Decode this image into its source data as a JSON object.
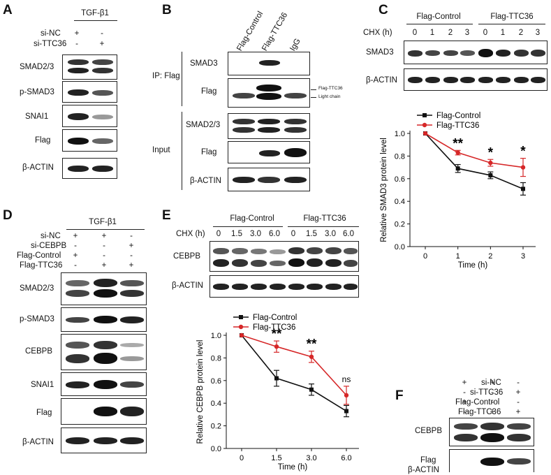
{
  "panels": {
    "A": {
      "label": "A",
      "header": "TGF-β1",
      "conditions": [
        {
          "name": "si-NC",
          "marks": [
            "+",
            "-"
          ]
        },
        {
          "name": "si-TTC36",
          "marks": [
            "-",
            "+"
          ]
        }
      ],
      "blots": [
        "SMAD2/3",
        "p-SMAD3",
        "SNAI1",
        "Flag",
        "β-ACTIN"
      ]
    },
    "B": {
      "label": "B",
      "lanes": [
        "Flag-Control",
        "Flag-TTC36",
        "IgG"
      ],
      "ip_label": "IP: Flag",
      "input_label": "Input",
      "blots": [
        "SMAD3",
        "Flag",
        "SMAD2/3",
        "Flag",
        "β-ACTIN"
      ],
      "annotations": [
        "Flag-TTC36",
        "Light chain"
      ]
    },
    "C": {
      "label": "C",
      "groups": [
        "Flag-Control",
        "Flag-TTC36"
      ],
      "chx_label": "CHX (h)",
      "timepoints": [
        "0",
        "1",
        "2",
        "3",
        "0",
        "1",
        "2",
        "3"
      ],
      "blots": [
        "SMAD3",
        "β-ACTIN"
      ]
    },
    "D": {
      "label": "D",
      "header": "TGF-β1",
      "conditions": [
        {
          "name": "si-NC",
          "marks": [
            "+",
            "+",
            "-"
          ]
        },
        {
          "name": "si-CEBPB",
          "marks": [
            "-",
            "-",
            "+"
          ]
        },
        {
          "name": "Flag-Control",
          "marks": [
            "+",
            "-",
            "-"
          ]
        },
        {
          "name": "Flag-TTC36",
          "marks": [
            "-",
            "+",
            "+"
          ]
        }
      ],
      "blots": [
        "SMAD2/3",
        "p-SMAD3",
        "CEBPB",
        "SNAI1",
        "Flag",
        "β-ACTIN"
      ]
    },
    "E": {
      "label": "E",
      "groups": [
        "Flag-Control",
        "Flag-TTC36"
      ],
      "chx_label": "CHX (h)",
      "timepoints": [
        "0",
        "1.5",
        "3.0",
        "6.0",
        "0",
        "1.5",
        "3.0",
        "6.0"
      ],
      "blots": [
        "CEBPB",
        "β-ACTIN"
      ]
    },
    "F": {
      "label": "F",
      "conditions": [
        {
          "name": "si-NC",
          "marks": [
            "+",
            "+",
            "-"
          ]
        },
        {
          "name": "si-TTC36",
          "marks": [
            "-",
            "-",
            "+"
          ]
        },
        {
          "name": "Flag-Control",
          "marks": [
            "+",
            "-",
            "-"
          ]
        },
        {
          "name": "Flag-TTC36",
          "marks": [
            "-",
            "+",
            "+"
          ]
        }
      ],
      "blots": [
        "CEBPB",
        "Flag",
        "β-ACTIN"
      ]
    }
  },
  "colors": {
    "control": "#111111",
    "ttc36": "#d62728"
  },
  "chart_data": [
    {
      "id": "C",
      "type": "line",
      "ylabel": "Relative SMAD3 protein level",
      "xlabel": "Time (h)",
      "x": [
        "0",
        "1",
        "2",
        "3"
      ],
      "ylim": [
        0,
        1.0
      ],
      "yticks": [
        "0.0",
        "0.2",
        "0.4",
        "0.6",
        "0.8",
        "1.0"
      ],
      "series": [
        {
          "name": "Flag-Control",
          "values": [
            1.0,
            0.69,
            0.63,
            0.51
          ],
          "errors": [
            0,
            0.035,
            0.03,
            0.055
          ]
        },
        {
          "name": "Flag-TTC36",
          "values": [
            1.0,
            0.83,
            0.74,
            0.7
          ],
          "errors": [
            0,
            0.02,
            0.03,
            0.08
          ]
        }
      ],
      "significance": [
        "",
        "**",
        "*",
        "*"
      ],
      "legend_position": "top-left"
    },
    {
      "id": "E",
      "type": "line",
      "ylabel": "Relative CEBPB protein level",
      "xlabel": "Time (h)",
      "x": [
        "0",
        "1.5",
        "3.0",
        "6.0"
      ],
      "ylim": [
        0,
        1.0
      ],
      "yticks": [
        "0.0",
        "0.2",
        "0.4",
        "0.6",
        "0.8",
        "1.0"
      ],
      "series": [
        {
          "name": "Flag-Control",
          "values": [
            1.0,
            0.62,
            0.52,
            0.33
          ],
          "errors": [
            0,
            0.07,
            0.05,
            0.05
          ]
        },
        {
          "name": "Flag-TTC36",
          "values": [
            1.0,
            0.9,
            0.81,
            0.47
          ],
          "errors": [
            0,
            0.05,
            0.05,
            0.08
          ]
        }
      ],
      "significance": [
        "",
        "**",
        "**",
        "ns"
      ],
      "legend_position": "top-left"
    }
  ]
}
